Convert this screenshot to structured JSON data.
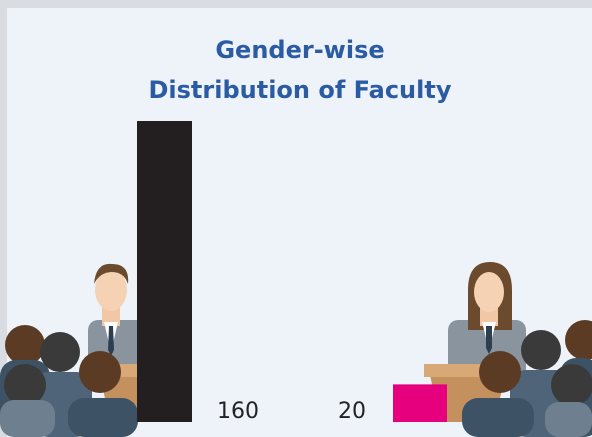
{
  "chart_data": {
    "type": "bar",
    "title": "Gender-wise\nDistribution of Faculty",
    "values": [
      160,
      20
    ],
    "colors": [
      "#231f20",
      "#e6007e"
    ]
  }
}
